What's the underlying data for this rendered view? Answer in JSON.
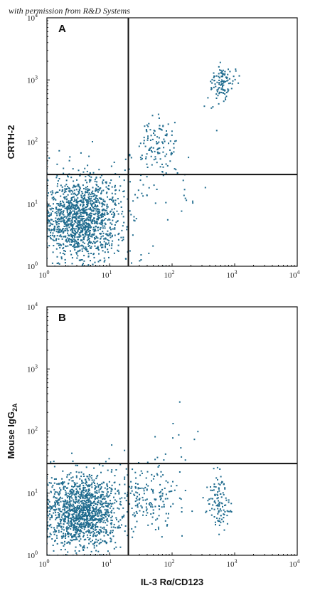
{
  "watermark": "with permission from R&D Systems",
  "dot_color": "#1f6b8e",
  "chart_data": [
    {
      "type": "scatter",
      "panel": "A",
      "xscale": "log",
      "yscale": "log",
      "xlim": [
        1,
        10000
      ],
      "ylim": [
        1,
        10000
      ],
      "xticks": [
        1,
        10,
        100,
        1000,
        10000
      ],
      "yticks": [
        1,
        10,
        100,
        1000,
        10000
      ],
      "xlabel": "",
      "ylabel": "CRTH-2",
      "gate": {
        "x": 20,
        "y": 30
      },
      "populations": [
        {
          "label": "double-negative cluster",
          "cx": 3.5,
          "cy": 6,
          "sx": 0.32,
          "sy": 0.33,
          "n": 1400
        },
        {
          "label": "mid cluster",
          "cx": 60,
          "cy": 90,
          "sx": 0.17,
          "sy": 0.2,
          "n": 110
        },
        {
          "label": "high cluster",
          "cx": 650,
          "cy": 850,
          "sx": 0.1,
          "sy": 0.15,
          "n": 110
        },
        {
          "label": "scattered events",
          "cx": 40,
          "cy": 20,
          "sx": 0.45,
          "sy": 0.45,
          "n": 60
        }
      ]
    },
    {
      "type": "scatter",
      "panel": "B",
      "xscale": "log",
      "yscale": "log",
      "xlim": [
        1,
        10000
      ],
      "ylim": [
        1,
        10000
      ],
      "xticks": [
        1,
        10,
        100,
        1000,
        10000
      ],
      "yticks": [
        1,
        10,
        100,
        1000,
        10000
      ],
      "xlabel": "IL-3 Rα/CD123",
      "ylabel": "Mouse IgG2A",
      "gate": {
        "x": 20,
        "y": 30
      },
      "populations": [
        {
          "label": "double-negative cluster",
          "cx": 3.5,
          "cy": 5,
          "sx": 0.32,
          "sy": 0.3,
          "n": 1400
        },
        {
          "label": "mid cluster",
          "cx": 45,
          "cy": 8,
          "sx": 0.22,
          "sy": 0.25,
          "n": 160
        },
        {
          "label": "high cluster",
          "cx": 550,
          "cy": 7,
          "sx": 0.1,
          "sy": 0.22,
          "n": 110
        },
        {
          "label": "scattered events",
          "cx": 60,
          "cy": 40,
          "sx": 0.35,
          "sy": 0.35,
          "n": 25
        }
      ]
    }
  ]
}
